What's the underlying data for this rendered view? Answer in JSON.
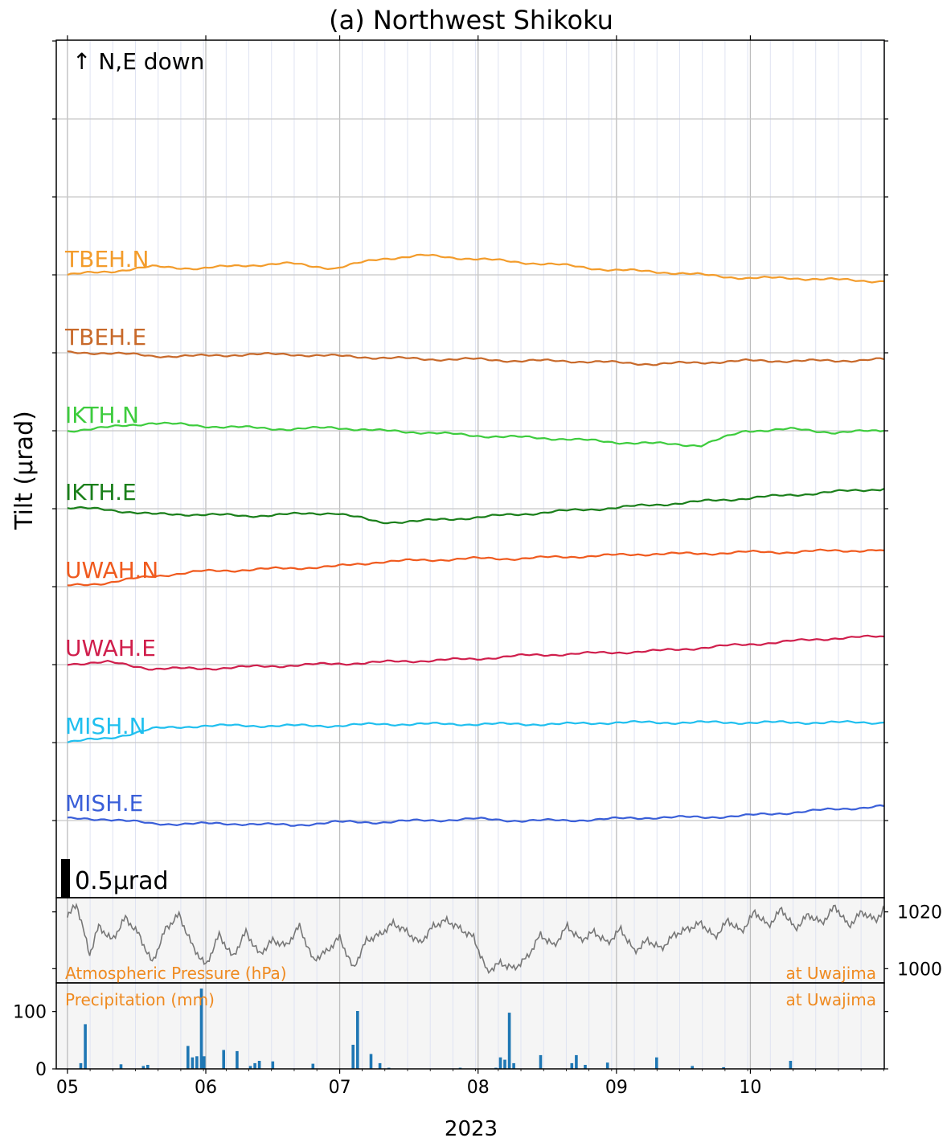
{
  "chart_data": [
    {
      "type": "line",
      "title": "(a) Northwest Shikoku",
      "ylabel": "Tilt (μrad)",
      "xlabel": "2023",
      "x_tick_labels": [
        "05",
        "06",
        "07",
        "08",
        "09",
        "10"
      ],
      "x_range": [
        "2023-05-01",
        "2023-10-31"
      ],
      "direction_note": "↑ N,E down",
      "scale_bar": {
        "label": "0.5μrad",
        "value": 0.5
      },
      "grid": true,
      "units": "μrad (relative offset per trace)",
      "dates": [
        "05-01",
        "05-10",
        "05-20",
        "05-31",
        "06-10",
        "06-20",
        "06-30",
        "07-10",
        "07-20",
        "07-31",
        "08-10",
        "08-20",
        "08-31",
        "09-10",
        "09-20",
        "09-30",
        "10-10",
        "10-20",
        "10-31"
      ],
      "series": [
        {
          "name": "TBEH.N",
          "color": "#f39c2b",
          "values": [
            0.0,
            0.02,
            0.05,
            0.04,
            0.06,
            0.07,
            0.04,
            0.1,
            0.12,
            0.1,
            0.08,
            0.06,
            0.03,
            0.02,
            0.0,
            -0.02,
            -0.02,
            -0.03,
            -0.04
          ]
        },
        {
          "name": "TBEH.E",
          "color": "#c8692a",
          "values": [
            0.0,
            0.0,
            -0.02,
            -0.02,
            -0.01,
            -0.01,
            -0.02,
            -0.03,
            -0.04,
            -0.04,
            -0.05,
            -0.05,
            -0.06,
            -0.07,
            -0.06,
            -0.05,
            -0.05,
            -0.05,
            -0.04
          ]
        },
        {
          "name": "IKTH.N",
          "color": "#3dcc3d",
          "values": [
            0.0,
            0.02,
            0.05,
            0.03,
            0.02,
            0.01,
            0.02,
            0.0,
            -0.01,
            -0.03,
            -0.04,
            -0.05,
            -0.07,
            -0.08,
            -0.09,
            0.0,
            0.01,
            -0.01,
            0.0
          ]
        },
        {
          "name": "IKTH.E",
          "color": "#1a7f1a",
          "values": [
            0.0,
            -0.01,
            -0.04,
            -0.04,
            -0.05,
            -0.04,
            -0.03,
            -0.09,
            -0.08,
            -0.06,
            -0.04,
            -0.02,
            0.0,
            0.02,
            0.04,
            0.06,
            0.08,
            0.1,
            0.12
          ]
        },
        {
          "name": "UWAH.N",
          "color": "#f05a1e",
          "values": [
            0.0,
            0.02,
            0.06,
            0.09,
            0.1,
            0.11,
            0.12,
            0.15,
            0.16,
            0.17,
            0.17,
            0.18,
            0.19,
            0.2,
            0.2,
            0.21,
            0.21,
            0.22,
            0.22
          ]
        },
        {
          "name": "UWAH.E",
          "color": "#d01e4c",
          "values": [
            0.0,
            0.01,
            -0.03,
            -0.03,
            -0.02,
            -0.01,
            0.0,
            0.01,
            0.02,
            0.03,
            0.05,
            0.06,
            0.07,
            0.08,
            0.1,
            0.12,
            0.14,
            0.16,
            0.17
          ]
        },
        {
          "name": "MISH.N",
          "color": "#1fbfef",
          "values": [
            0.0,
            0.02,
            0.08,
            0.1,
            0.1,
            0.1,
            0.1,
            0.11,
            0.11,
            0.11,
            0.11,
            0.11,
            0.12,
            0.12,
            0.12,
            0.12,
            0.12,
            0.12,
            0.12
          ]
        },
        {
          "name": "MISH.E",
          "color": "#3a5fd9",
          "values": [
            0.0,
            0.0,
            -0.03,
            -0.03,
            -0.03,
            -0.04,
            -0.02,
            -0.02,
            -0.01,
            0.0,
            -0.01,
            -0.01,
            0.0,
            0.01,
            0.01,
            0.02,
            0.04,
            0.06,
            0.08
          ]
        }
      ]
    },
    {
      "type": "line",
      "label": "Atmospheric Pressure (hPa)",
      "location": "at Uwajima",
      "color": "#777777",
      "y_tick_labels": [
        "1020",
        "1000"
      ],
      "ylim": [
        995,
        1025
      ],
      "dates": [
        "05-01",
        "05-03",
        "05-06",
        "05-08",
        "05-11",
        "05-14",
        "05-17",
        "05-20",
        "05-23",
        "05-26",
        "05-29",
        "06-01",
        "06-04",
        "06-07",
        "06-10",
        "06-13",
        "06-16",
        "06-19",
        "06-22",
        "06-25",
        "06-28",
        "07-01",
        "07-04",
        "07-07",
        "07-10",
        "07-13",
        "07-16",
        "07-19",
        "07-22",
        "07-25",
        "07-28",
        "07-31",
        "08-03",
        "08-06",
        "08-09",
        "08-12",
        "08-15",
        "08-18",
        "08-21",
        "08-24",
        "08-27",
        "08-30",
        "09-02",
        "09-05",
        "09-08",
        "09-11",
        "09-14",
        "09-17",
        "09-20",
        "09-23",
        "09-26",
        "09-29",
        "10-02",
        "10-05",
        "10-08",
        "10-11",
        "10-14",
        "10-17",
        "10-20",
        "10-23",
        "10-26",
        "10-29",
        "10-31"
      ],
      "values": [
        1018,
        1023,
        1005,
        1015,
        1010,
        1018,
        1012,
        1002,
        1014,
        1019,
        1008,
        1001,
        1012,
        1004,
        1013,
        1005,
        1010,
        1008,
        1015,
        1003,
        1006,
        1011,
        1000,
        1010,
        1012,
        1016,
        1013,
        1009,
        1015,
        1017,
        1014,
        1011,
        999,
        1002,
        1000,
        1004,
        1012,
        1008,
        1015,
        1010,
        1013,
        1009,
        1014,
        1006,
        1010,
        1007,
        1012,
        1014,
        1016,
        1011,
        1017,
        1013,
        1020,
        1015,
        1021,
        1014,
        1019,
        1016,
        1022,
        1015,
        1020,
        1017,
        1021
      ]
    },
    {
      "type": "bar",
      "label": "Precipitation (mm)",
      "location": "at Uwajima",
      "color": "#1f77b4",
      "y_tick_labels": [
        "100",
        "0"
      ],
      "ylim": [
        0,
        150
      ],
      "dates": [
        "05-04",
        "05-05",
        "05-13",
        "05-18",
        "05-19",
        "05-28",
        "05-29",
        "05-30",
        "05-31",
        "05-31b",
        "06-05",
        "06-08",
        "06-11",
        "06-12",
        "06-13",
        "06-16",
        "06-25",
        "07-04",
        "07-05",
        "07-08",
        "07-10",
        "07-12",
        "07-28",
        "08-05",
        "08-06",
        "08-07",
        "08-08",
        "08-09",
        "08-15",
        "08-22",
        "08-23",
        "08-25",
        "08-30",
        "09-10",
        "09-18",
        "09-25",
        "10-10"
      ],
      "values": [
        10,
        78,
        8,
        5,
        7,
        40,
        20,
        22,
        140,
        22,
        33,
        31,
        5,
        10,
        14,
        13,
        9,
        42,
        101,
        26,
        10,
        2,
        2,
        2,
        20,
        16,
        98,
        10,
        24,
        10,
        24,
        7,
        11,
        20,
        5,
        3,
        14
      ]
    }
  ]
}
